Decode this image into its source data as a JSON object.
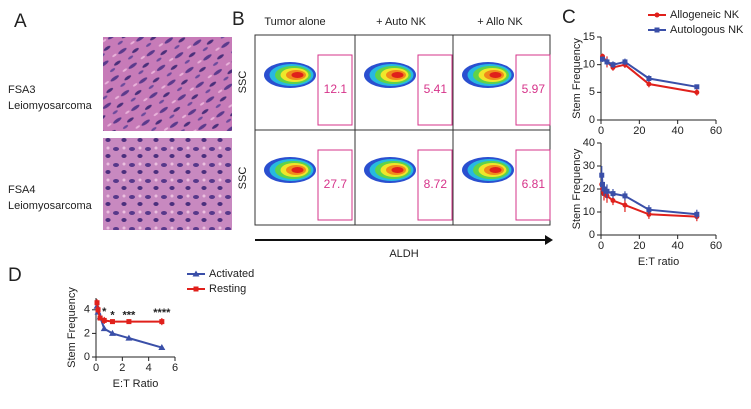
{
  "panel_labels": [
    "A",
    "B",
    "C",
    "D"
  ],
  "panel_a": {
    "rows": [
      {
        "name": "FSA3",
        "type": "Leiomyosarcoma"
      },
      {
        "name": "FSA4",
        "type": "Leiomyosarcoma"
      }
    ]
  },
  "panel_b": {
    "columns": [
      "Tumor alone",
      "+ Auto NK",
      "+ Allo NK"
    ],
    "y_labels": [
      "SSC",
      "SSC"
    ],
    "x_label": "ALDH",
    "gates": [
      [
        12.1,
        5.41,
        5.97
      ],
      [
        27.7,
        8.72,
        6.81
      ]
    ]
  },
  "chart_data": [
    {
      "type": "line",
      "ylabel": "Stem Frequency",
      "xlim": [
        0,
        60
      ],
      "xticks": [
        0,
        20,
        40,
        60
      ],
      "ylim": [
        0,
        15
      ],
      "yticks": [
        0,
        5,
        10,
        15
      ],
      "x": [
        0.78,
        3.125,
        6.25,
        12.5,
        25,
        50
      ],
      "legend": "upper right",
      "series": [
        {
          "name": "Allogeneic NK",
          "color": "#e0201b",
          "marker": "circle",
          "values": [
            11.5,
            10.5,
            9.5,
            10,
            6.5,
            5
          ],
          "errors": [
            0.5,
            1,
            0.6,
            0.6,
            0.6,
            0.6
          ]
        },
        {
          "name": "Autologous NK",
          "color": "#3a4fa8",
          "marker": "square",
          "values": [
            11,
            10.5,
            10,
            10.5,
            7.5,
            6
          ],
          "errors": [
            0.5,
            0.6,
            0.6,
            0.6,
            0.6,
            0.4
          ]
        }
      ]
    },
    {
      "type": "line",
      "ylabel": "Stem Frequency",
      "xlabel": "E:T ratio",
      "xlim": [
        0,
        60
      ],
      "xticks": [
        0,
        20,
        40,
        60
      ],
      "ylim": [
        0,
        40
      ],
      "yticks": [
        0,
        10,
        20,
        30,
        40
      ],
      "x": [
        0.39,
        0.78,
        1.56,
        3.125,
        6.25,
        12.5,
        25,
        50
      ],
      "series": [
        {
          "color": "#e0201b",
          "marker": "circle",
          "values": [
            22,
            20,
            18,
            17,
            15,
            13,
            9,
            8
          ],
          "errors": [
            4,
            3,
            3,
            3,
            2,
            3,
            2,
            2
          ]
        },
        {
          "color": "#3a4fa8",
          "marker": "square",
          "values": [
            26,
            22,
            20,
            19,
            18,
            17,
            11,
            9
          ],
          "errors": [
            4,
            3,
            3,
            3,
            2,
            2,
            2,
            2
          ]
        }
      ]
    },
    {
      "type": "line",
      "ylabel": "Stem Frequency",
      "xlabel": "E:T Ratio",
      "xlim": [
        0,
        6
      ],
      "xticks": [
        0,
        2,
        4,
        6
      ],
      "ylim": [
        0,
        5
      ],
      "yticks": [
        0,
        2,
        4
      ],
      "x": [
        0.078,
        0.156,
        0.3125,
        0.625,
        1.25,
        2.5,
        5
      ],
      "legend": "right",
      "significance": [
        null,
        null,
        null,
        "*",
        "*",
        "***",
        "****"
      ],
      "series": [
        {
          "name": "Activated",
          "color": "#3a4fa8",
          "marker": "triangle",
          "values": [
            4.3,
            3.8,
            3.4,
            2.4,
            2.0,
            1.6,
            0.8
          ]
        },
        {
          "name": "Resting",
          "color": "#e0201b",
          "marker": "square",
          "values": [
            4.6,
            4.0,
            3.3,
            3.1,
            3.0,
            3.0,
            3.0
          ],
          "errors": [
            0.3,
            0.3,
            0.2,
            0.3,
            0.1,
            0.1,
            0.3
          ]
        }
      ]
    }
  ]
}
